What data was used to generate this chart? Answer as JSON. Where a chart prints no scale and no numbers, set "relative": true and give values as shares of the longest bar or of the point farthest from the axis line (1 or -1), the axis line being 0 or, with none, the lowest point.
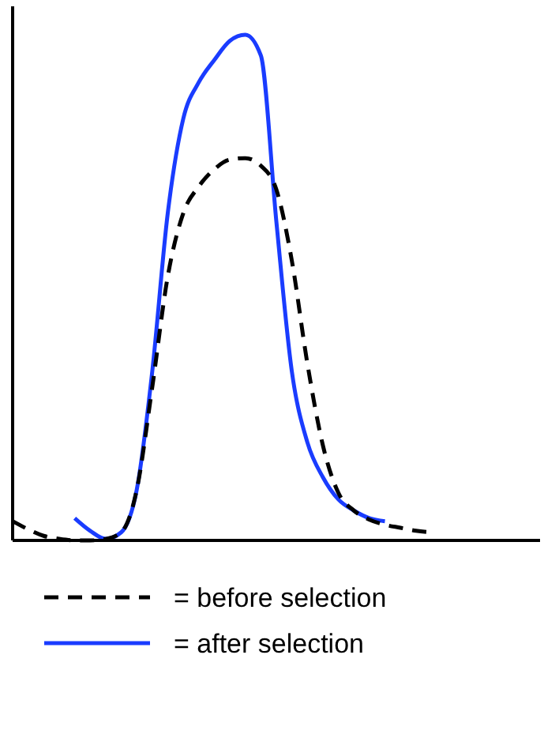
{
  "chart_data": {
    "type": "line",
    "relative": true,
    "legend": "bottom",
    "categories": [
      null,
      null,
      null,
      null,
      null,
      null,
      null,
      null,
      null,
      null,
      null,
      null,
      null,
      null,
      null,
      null,
      null,
      null,
      null,
      null,
      null,
      null,
      null,
      null,
      null,
      null,
      null,
      null,
      null,
      null,
      null,
      null,
      null,
      null
    ],
    "series": [
      {
        "name": "= before selection",
        "color": "#000000",
        "line_style": "dashed",
        "values": [
          0.038,
          0.022,
          0.009,
          0.003,
          0,
          0,
          0.003,
          0.016,
          0.1,
          0.303,
          0.522,
          0.647,
          0.7,
          0.734,
          0.753,
          0.756,
          0.741,
          0.694,
          0.553,
          0.35,
          0.188,
          0.094,
          0.059,
          0.041,
          0.031,
          0.025,
          0.019,
          0.016,
          null,
          null,
          null,
          null,
          null,
          null
        ]
      },
      {
        "name": "= after selection",
        "color": "#1a3cff",
        "line_style": "solid",
        "values": [
          null,
          null,
          null,
          null,
          0.044,
          0.019,
          0.003,
          0.016,
          0.1,
          0.334,
          0.647,
          0.834,
          0.906,
          0.95,
          0.988,
          1,
          0.959,
          0.631,
          0.334,
          0.194,
          0.125,
          0.081,
          0.059,
          0.044,
          0.038,
          null,
          null,
          null,
          null,
          null,
          null,
          null,
          null,
          null
        ]
      }
    ]
  }
}
